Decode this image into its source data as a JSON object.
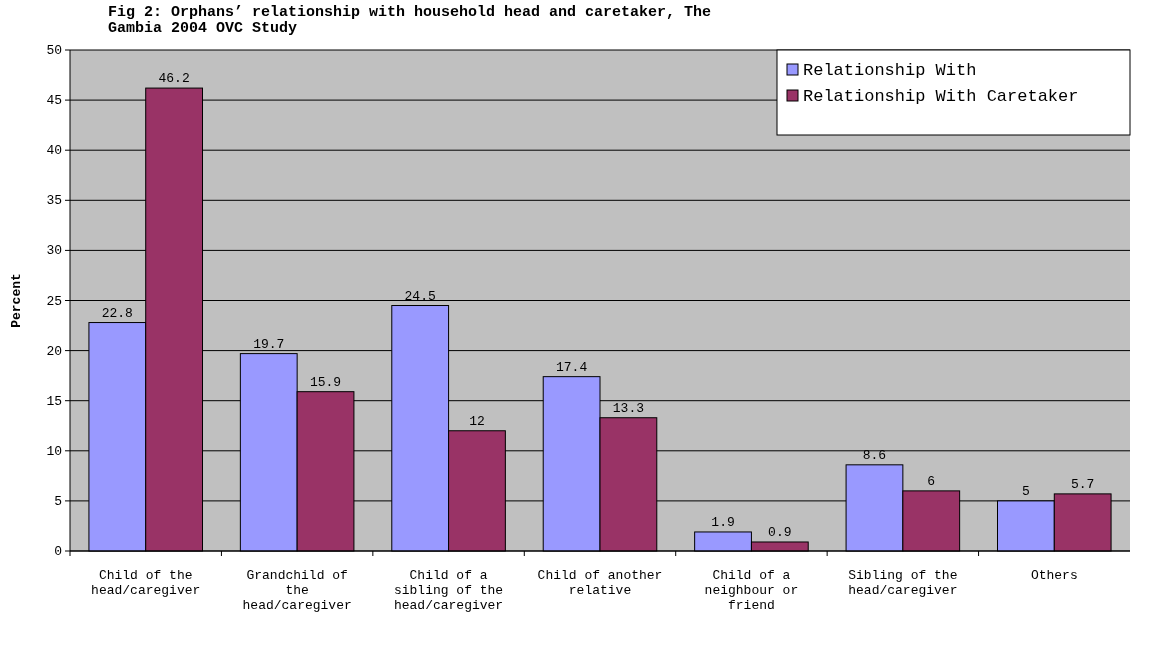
{
  "chart_data": {
    "type": "bar",
    "title": "Fig 2: Orphans’ relationship with household head and caretaker, The Gambia 2004 OVC Study",
    "ylabel": "Percent",
    "categories": [
      "Child of the head/caregiver",
      "Grandchild of the head/caregiver",
      "Child of a sibling of the head/caregiver",
      "Child of another relative",
      "Child of a neighbour or friend",
      "Sibling of the head/caregiver",
      "Others"
    ],
    "series": [
      {
        "name": "Relationship With",
        "color": "#9999ff",
        "values": [
          22.8,
          19.7,
          24.5,
          17.4,
          1.9,
          8.6,
          5
        ]
      },
      {
        "name": "Relationship With Caretaker",
        "color": "#993366",
        "values": [
          46.2,
          15.9,
          12,
          13.3,
          0.9,
          6,
          5.7
        ]
      }
    ],
    "ylim": [
      0,
      50
    ],
    "yticks": [
      0,
      5,
      10,
      15,
      20,
      25,
      30,
      35,
      40,
      45,
      50
    ],
    "grid": "y",
    "legend": "top right",
    "data_labels": true
  }
}
